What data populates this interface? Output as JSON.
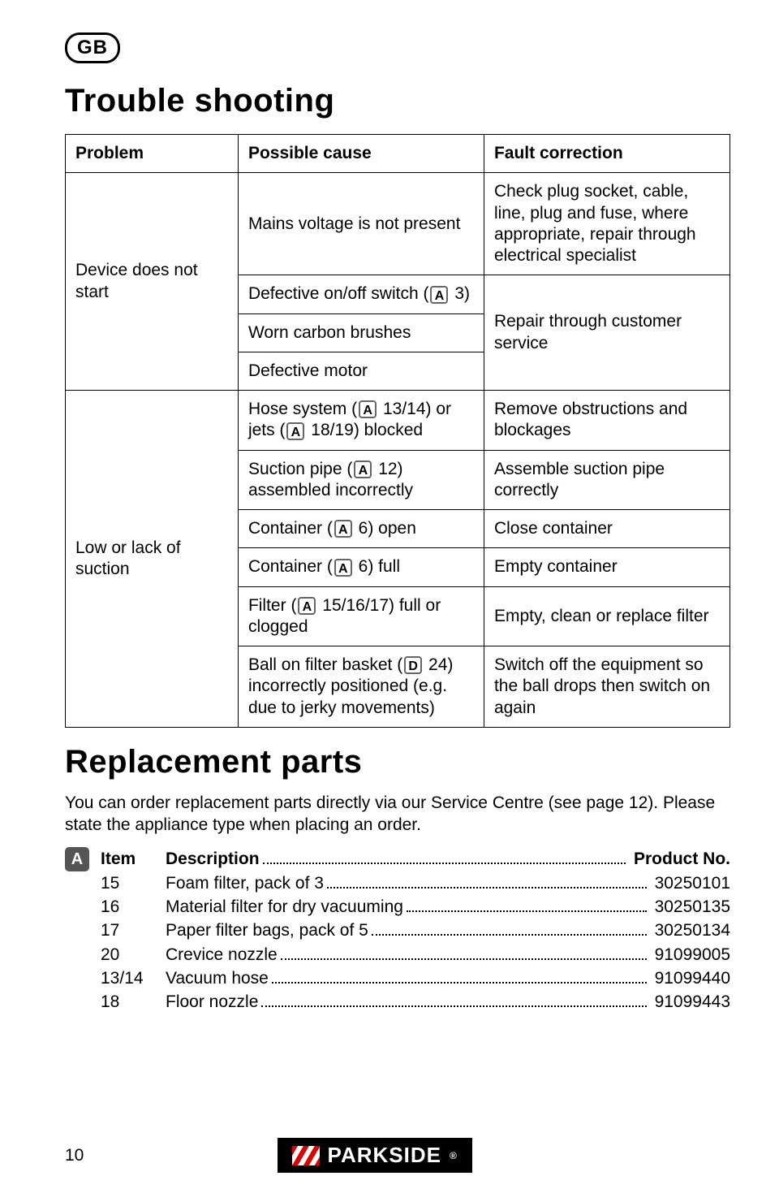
{
  "badge": "GB",
  "title1": "Trouble shooting",
  "title2": "Replacement parts",
  "table": {
    "headers": {
      "c1": "Problem",
      "c2": "Possible cause",
      "c3": "Fault correction"
    },
    "r1c1": "Device does not start",
    "r1c2a": "Mains voltage is not present",
    "r1c3a": "Check plug socket, cable, line, plug and fuse, where appropriate, repair through electrical specialist",
    "r1c2b_pre": "Defective on/off switch (",
    "r1c2b_num": " 3)",
    "r1c3b": "Repair through customer service",
    "r1c2c": "Worn carbon brushes",
    "r1c2d": "Defective motor",
    "r2c1": "Low or lack of suction",
    "r2c2a_pre": "Hose system (",
    "r2c2a_mid": " 13/14) or jets (",
    "r2c2a_post": " 18/19) blocked",
    "r2c3a": "Remove obstructions and blockages",
    "r2c2b_pre": "Suction pipe (",
    "r2c2b_post": " 12) assembled incorrectly",
    "r2c3b": "Assemble suction pipe correctly",
    "r2c2c_pre": "Container (",
    "r2c2c_post": " 6) open",
    "r2c3c": "Close container",
    "r2c2d_pre": "Container (",
    "r2c2d_post": " 6) full",
    "r2c3d": "Empty container",
    "r2c2e_pre": "Filter (",
    "r2c2e_post": " 15/16/17) full or clogged",
    "r2c3e": "Empty, clean or replace filter",
    "r2c2f_pre": "Ball on filter basket (",
    "r2c2f_post": " 24) incorrectly positioned (e.g. due to jerky movements)",
    "r2c3f": "Switch off the equipment so the ball drops then switch on again",
    "refA": "A",
    "refD": "D"
  },
  "intro": "You can order replacement parts directly via our Service Centre (see page 12). Please state the appliance type when placing an order.",
  "parts": {
    "refA": "A",
    "hdr_item": "Item",
    "hdr_desc": "Description",
    "hdr_no": "Product No.",
    "rows": [
      {
        "item": "15",
        "desc": "Foam filter, pack of 3",
        "no": "30250101"
      },
      {
        "item": "16",
        "desc": "Material filter for dry vacuuming",
        "no": "30250135"
      },
      {
        "item": "17",
        "desc": "Paper filter bags, pack of 5",
        "no": "30250134"
      },
      {
        "item": "20",
        "desc": "Crevice nozzle",
        "no": "91099005"
      },
      {
        "item": "13/14",
        "desc": "Vacuum hose",
        "no": "91099440"
      },
      {
        "item": "18",
        "desc": "Floor nozzle",
        "no": "91099443"
      }
    ]
  },
  "page": "10",
  "brand": "PARKSIDE"
}
